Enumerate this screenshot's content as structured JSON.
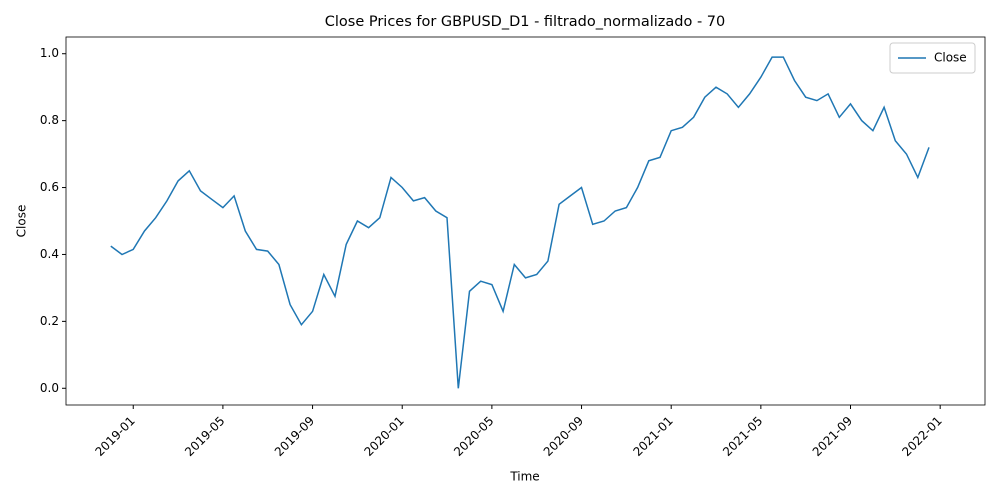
{
  "chart_data": {
    "type": "line",
    "title": "Close Prices for GBPUSD_D1 - filtrado_normalizado - 70",
    "x_label": "Time",
    "y_label": "Close",
    "x": [
      "2018-12",
      "2018-12",
      "2019-01",
      "2019-01",
      "2019-02",
      "2019-02",
      "2019-03",
      "2019-03",
      "2019-04",
      "2019-04",
      "2019-05",
      "2019-05",
      "2019-06",
      "2019-06",
      "2019-07",
      "2019-07",
      "2019-08",
      "2019-08",
      "2019-09",
      "2019-09",
      "2019-10",
      "2019-10",
      "2019-11",
      "2019-11",
      "2019-12",
      "2019-12",
      "2020-01",
      "2020-01",
      "2020-02",
      "2020-02",
      "2020-03",
      "2020-03",
      "2020-04",
      "2020-04",
      "2020-05",
      "2020-05",
      "2020-06",
      "2020-06",
      "2020-07",
      "2020-07",
      "2020-08",
      "2020-08",
      "2020-09",
      "2020-09",
      "2020-10",
      "2020-10",
      "2020-11",
      "2020-11",
      "2020-12",
      "2020-12",
      "2021-01",
      "2021-01",
      "2021-02",
      "2021-02",
      "2021-03",
      "2021-03",
      "2021-04",
      "2021-04",
      "2021-05",
      "2021-05",
      "2021-06",
      "2021-06",
      "2021-07",
      "2021-07",
      "2021-08",
      "2021-08",
      "2021-09",
      "2021-09",
      "2021-10",
      "2021-10",
      "2021-11",
      "2021-11",
      "2021-12",
      "2021-12"
    ],
    "series": [
      {
        "name": "Close",
        "color": "#1f77b4",
        "values": [
          0.425,
          0.4,
          0.415,
          0.47,
          0.51,
          0.56,
          0.62,
          0.65,
          0.59,
          0.565,
          0.54,
          0.575,
          0.47,
          0.415,
          0.41,
          0.37,
          0.25,
          0.19,
          0.23,
          0.34,
          0.275,
          0.43,
          0.5,
          0.48,
          0.51,
          0.63,
          0.6,
          0.56,
          0.57,
          0.53,
          0.51,
          0.0,
          0.29,
          0.32,
          0.31,
          0.23,
          0.37,
          0.33,
          0.34,
          0.38,
          0.55,
          0.575,
          0.6,
          0.49,
          0.5,
          0.53,
          0.54,
          0.6,
          0.68,
          0.69,
          0.77,
          0.78,
          0.81,
          0.87,
          0.9,
          0.88,
          0.84,
          0.88,
          0.93,
          0.99,
          0.99,
          0.92,
          0.87,
          0.86,
          0.88,
          0.81,
          0.85,
          0.8,
          0.77,
          0.84,
          0.74,
          0.7,
          0.63,
          0.72
        ]
      }
    ],
    "xlim": [
      "2018-10",
      "2022-03"
    ],
    "xticks": [
      "2019-01",
      "2019-05",
      "2019-09",
      "2020-01",
      "2020-05",
      "2020-09",
      "2021-01",
      "2021-05",
      "2021-09",
      "2022-01"
    ],
    "ylim": [
      -0.05,
      1.05
    ],
    "yticks": [
      {
        "value": 0,
        "label": "0.0"
      },
      {
        "value": 0.2,
        "label": "0.2"
      },
      {
        "value": 0.4,
        "label": "0.4"
      },
      {
        "value": 0.6,
        "label": "0.6"
      },
      {
        "value": 0.8,
        "label": "0.8"
      },
      {
        "value": 1,
        "label": "1.0"
      }
    ],
    "legend": "upper right"
  }
}
